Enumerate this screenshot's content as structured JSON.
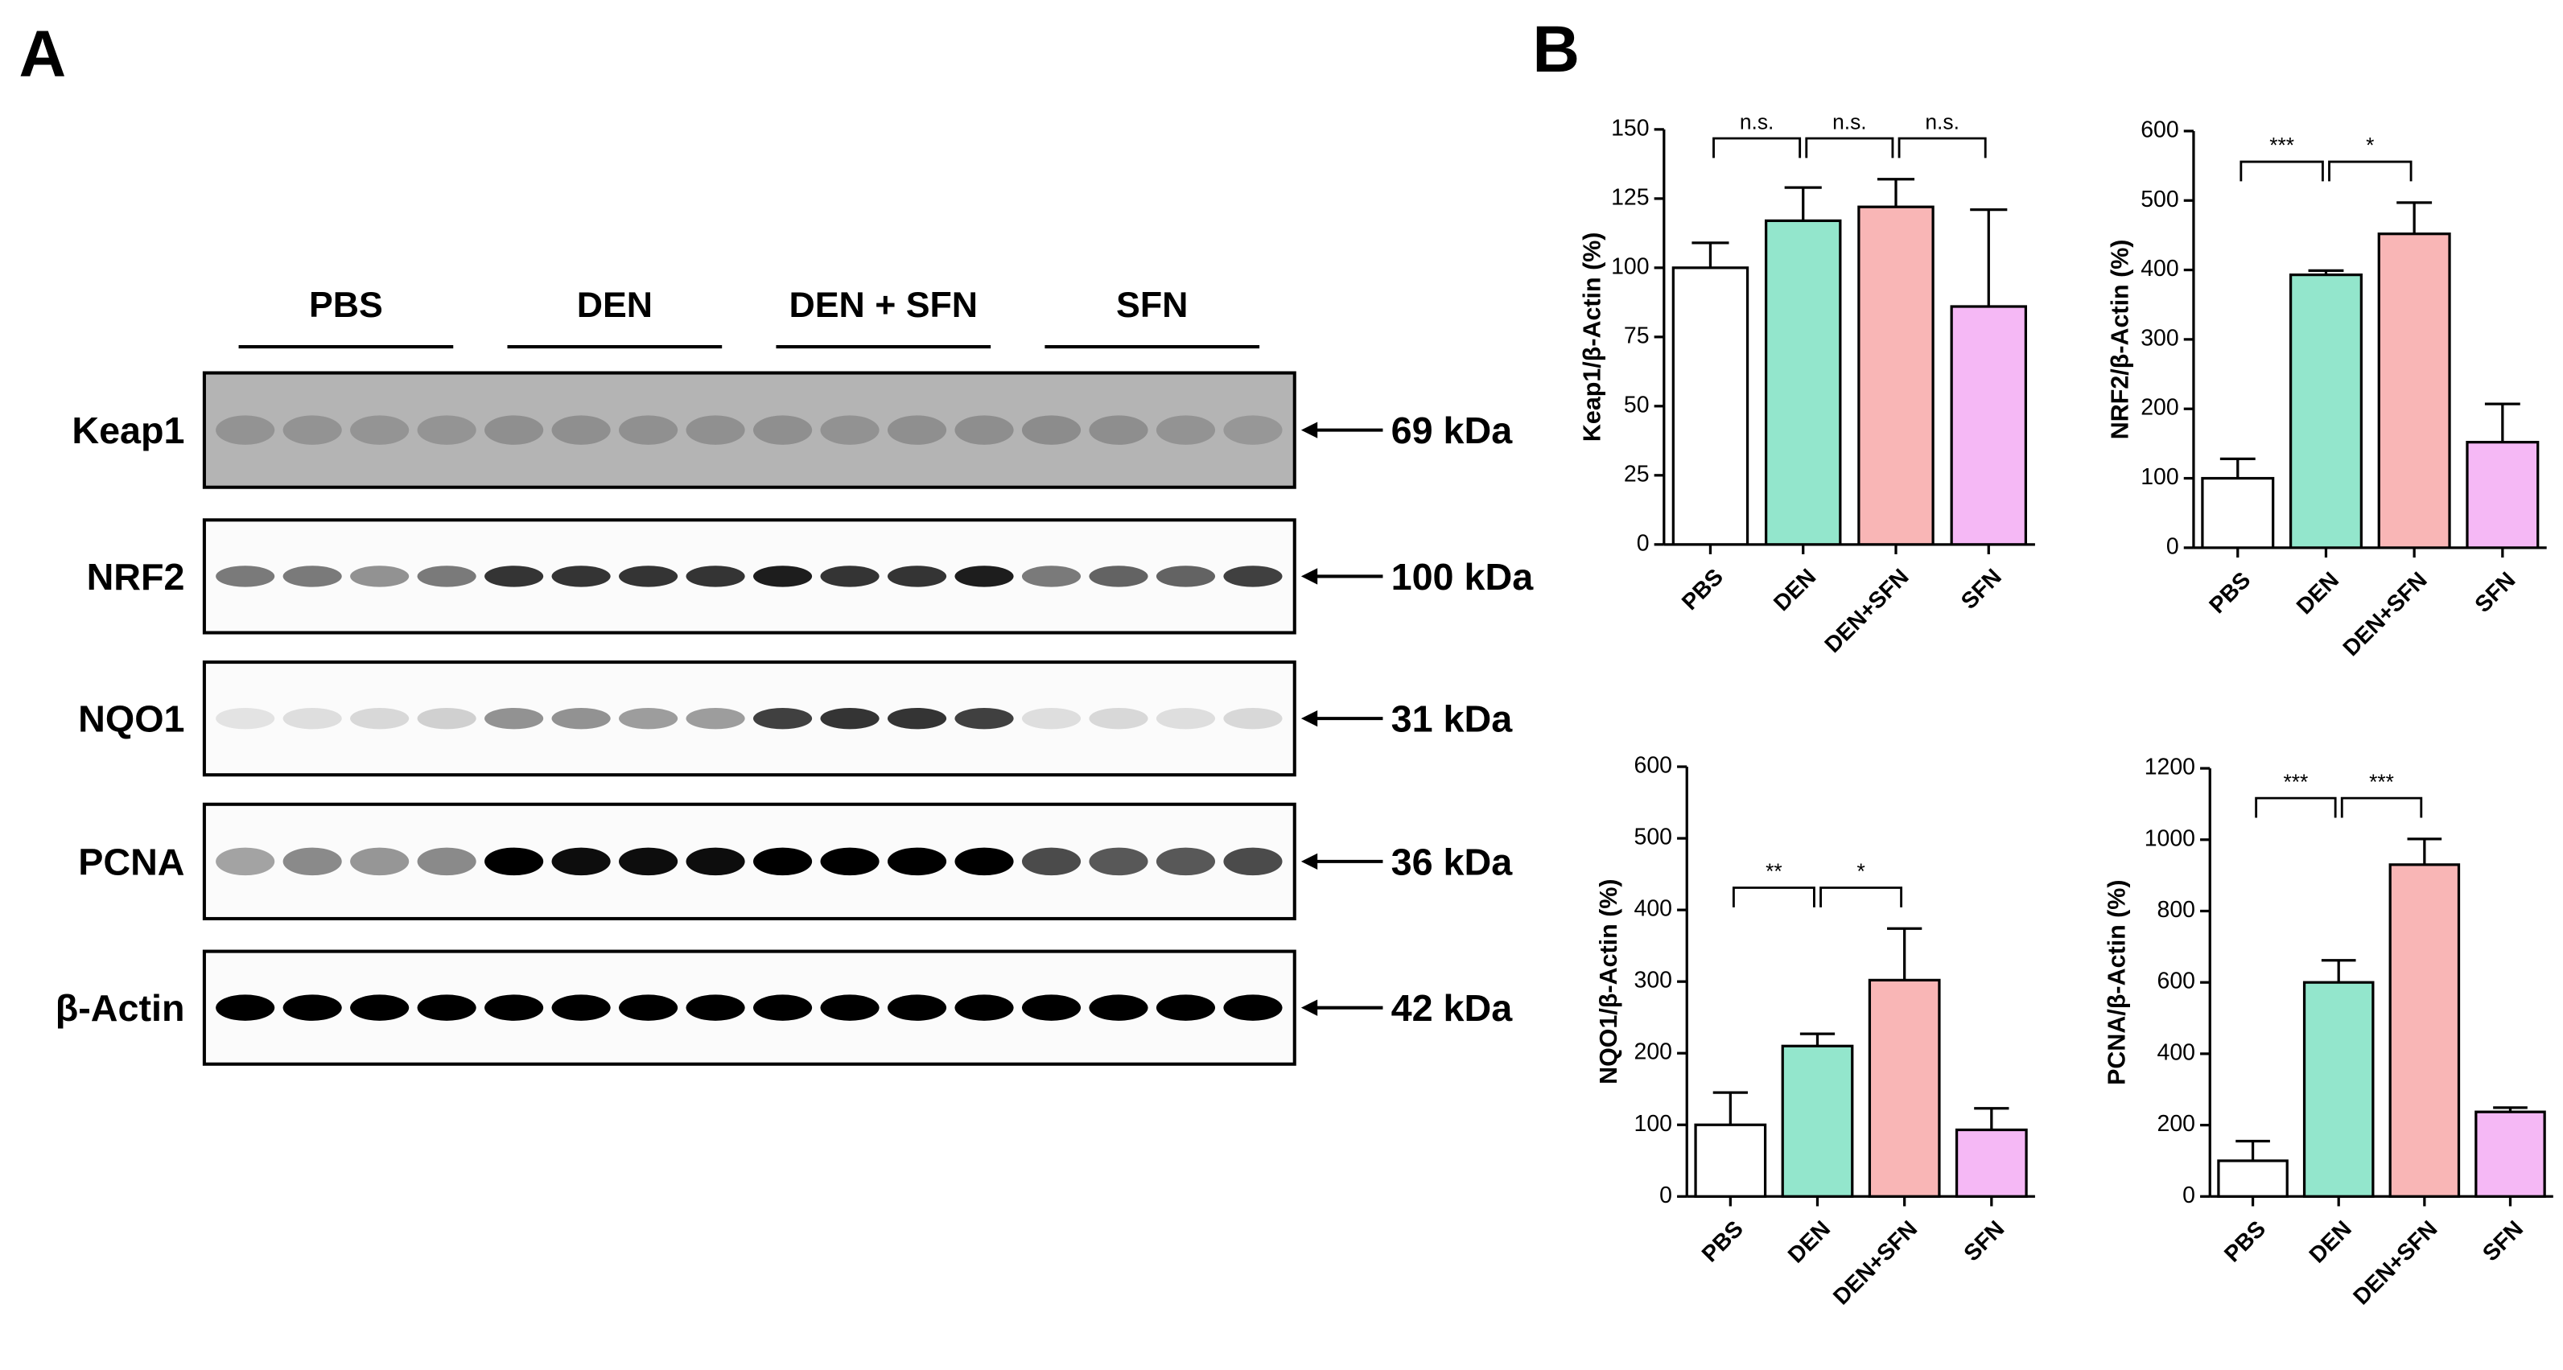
{
  "panel_labels": [
    "A",
    "B"
  ],
  "blot": {
    "groups": [
      "PBS",
      "DEN",
      "DEN + SFN",
      "SFN"
    ],
    "rows": [
      {
        "label": "Keap1",
        "size": "69 kDa"
      },
      {
        "label": "NRF2",
        "size": "100 kDa"
      },
      {
        "label": "NQO1",
        "size": "31 kDa"
      },
      {
        "label": "PCNA",
        "size": "36 kDa"
      },
      {
        "label": "β-Actin",
        "size": "42 kDa"
      }
    ]
  },
  "chart_data": [
    {
      "type": "bar",
      "y_label": "Keap1/β-Actin (%)",
      "categories": [
        "PBS",
        "DEN",
        "DEN+SFN",
        "SFN"
      ],
      "values": [
        100,
        117,
        122,
        86
      ],
      "errors": [
        9,
        12,
        10,
        35
      ],
      "colors": [
        "#ffffff",
        "#93e6cc",
        "#f9b6b6",
        "#f5b8f5"
      ],
      "ylim": [
        0,
        150
      ],
      "yticks": [
        0,
        25,
        50,
        75,
        100,
        125,
        150
      ],
      "annotations": [
        "n.s.",
        "n.s.",
        "n.s."
      ]
    },
    {
      "type": "bar",
      "y_label": "NRF2/β-Actin (%)",
      "categories": [
        "PBS",
        "DEN",
        "DEN+SFN",
        "SFN"
      ],
      "values": [
        100,
        393,
        452,
        152
      ],
      "errors": [
        28,
        6,
        45,
        55
      ],
      "colors": [
        "#ffffff",
        "#93e6cc",
        "#f9b6b6",
        "#f5b8f5"
      ],
      "ylim": [
        0,
        600
      ],
      "yticks": [
        0,
        100,
        200,
        300,
        400,
        500,
        600
      ],
      "annotations": [
        "***",
        "*"
      ]
    },
    {
      "type": "bar",
      "y_label": "NQO1/β-Actin (%)",
      "categories": [
        "PBS",
        "DEN",
        "DEN+SFN",
        "SFN"
      ],
      "values": [
        100,
        210,
        302,
        93
      ],
      "errors": [
        45,
        17,
        72,
        30
      ],
      "colors": [
        "#ffffff",
        "#93e6cc",
        "#f9b6b6",
        "#f5b8f5"
      ],
      "ylim": [
        0,
        600
      ],
      "yticks": [
        0,
        100,
        200,
        300,
        400,
        500,
        600
      ],
      "annotations": [
        "**",
        "*"
      ]
    },
    {
      "type": "bar",
      "y_label": "PCNA/β-Actin (%)",
      "categories": [
        "PBS",
        "DEN",
        "DEN+SFN",
        "SFN"
      ],
      "values": [
        100,
        600,
        930,
        237
      ],
      "errors": [
        55,
        62,
        72,
        12
      ],
      "colors": [
        "#ffffff",
        "#93e6cc",
        "#f9b6b6",
        "#f5b8f5"
      ],
      "ylim": [
        0,
        1200
      ],
      "yticks": [
        0,
        200,
        400,
        600,
        800,
        1000,
        1200
      ],
      "annotations": [
        "***",
        "***"
      ]
    }
  ]
}
